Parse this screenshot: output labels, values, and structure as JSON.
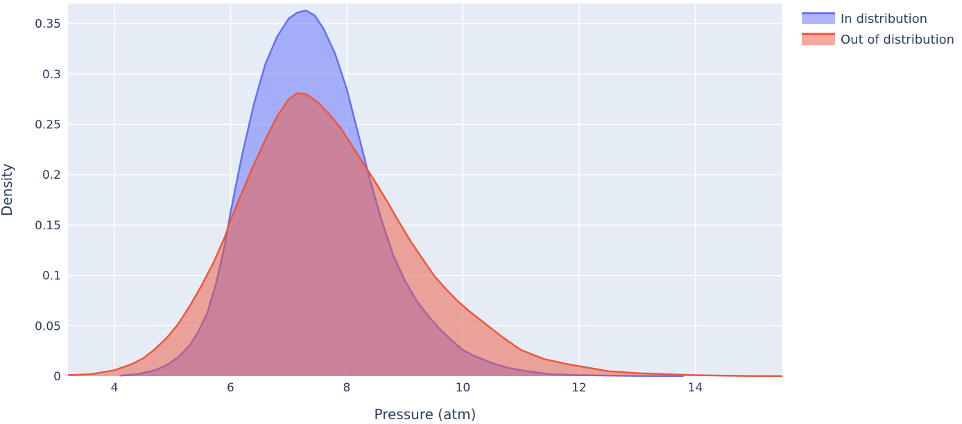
{
  "chart_data": {
    "type": "area",
    "xlabel": "Pressure (atm)",
    "ylabel": "Density",
    "xlim": [
      3.2,
      15.5
    ],
    "ylim": [
      0,
      0.37
    ],
    "xticks": [
      4,
      6,
      8,
      10,
      12,
      14
    ],
    "xtick_labels": [
      "4",
      "6",
      "8",
      "10",
      "12",
      "14"
    ],
    "yticks": [
      0,
      0.05,
      0.1,
      0.15,
      0.2,
      0.25,
      0.3,
      0.35
    ],
    "ytick_labels": [
      "0",
      "0.05",
      "0.1",
      "0.15",
      "0.2",
      "0.25",
      "0.3",
      "0.35"
    ],
    "grid": true,
    "legend_position": "top-right",
    "colors": {
      "plot_background": "#e5ecf6",
      "grid": "#ffffff",
      "text": "#2a3f5f"
    },
    "series": [
      {
        "name": "In distribution",
        "color": "#636efa",
        "fill": "rgba(99,110,250,0.5)",
        "x": [
          4.1,
          4.4,
          4.7,
          4.9,
          5.1,
          5.3,
          5.45,
          5.6,
          5.75,
          5.9,
          6.0,
          6.2,
          6.4,
          6.6,
          6.8,
          7.0,
          7.15,
          7.3,
          7.45,
          7.6,
          7.8,
          8.0,
          8.2,
          8.4,
          8.6,
          8.8,
          9.0,
          9.2,
          9.4,
          9.6,
          9.8,
          10.0,
          10.2,
          10.5,
          10.8,
          11.1,
          11.5,
          12.0,
          12.5,
          13.0,
          13.8
        ],
        "y": [
          0.0005,
          0.002,
          0.006,
          0.011,
          0.019,
          0.031,
          0.045,
          0.063,
          0.092,
          0.13,
          0.163,
          0.22,
          0.27,
          0.31,
          0.337,
          0.355,
          0.361,
          0.363,
          0.358,
          0.345,
          0.32,
          0.285,
          0.24,
          0.195,
          0.155,
          0.12,
          0.095,
          0.075,
          0.06,
          0.047,
          0.036,
          0.026,
          0.02,
          0.013,
          0.008,
          0.005,
          0.002,
          0.001,
          0.0006,
          0.0003,
          0.0001
        ]
      },
      {
        "name": "Out of distribution",
        "color": "#ef553b",
        "fill": "rgba(239,85,59,0.5)",
        "x": [
          3.2,
          3.6,
          4.0,
          4.3,
          4.5,
          4.7,
          4.9,
          5.1,
          5.3,
          5.5,
          5.7,
          5.9,
          6.0,
          6.2,
          6.4,
          6.6,
          6.8,
          7.0,
          7.15,
          7.3,
          7.5,
          7.7,
          7.9,
          8.1,
          8.3,
          8.5,
          8.7,
          8.9,
          9.1,
          9.3,
          9.5,
          9.7,
          9.9,
          10.1,
          10.3,
          10.5,
          10.7,
          11.0,
          11.4,
          11.8,
          12.2,
          12.5,
          13.0,
          13.5,
          14.0,
          14.5,
          15.0,
          15.5
        ],
        "y": [
          0.001,
          0.002,
          0.006,
          0.012,
          0.018,
          0.027,
          0.038,
          0.052,
          0.07,
          0.09,
          0.112,
          0.138,
          0.155,
          0.183,
          0.21,
          0.235,
          0.258,
          0.275,
          0.281,
          0.28,
          0.272,
          0.26,
          0.246,
          0.228,
          0.21,
          0.192,
          0.173,
          0.153,
          0.134,
          0.117,
          0.1,
          0.087,
          0.075,
          0.065,
          0.056,
          0.047,
          0.038,
          0.026,
          0.017,
          0.012,
          0.008,
          0.005,
          0.003,
          0.002,
          0.001,
          0.0005,
          0.0002,
          0.0001
        ]
      }
    ]
  }
}
